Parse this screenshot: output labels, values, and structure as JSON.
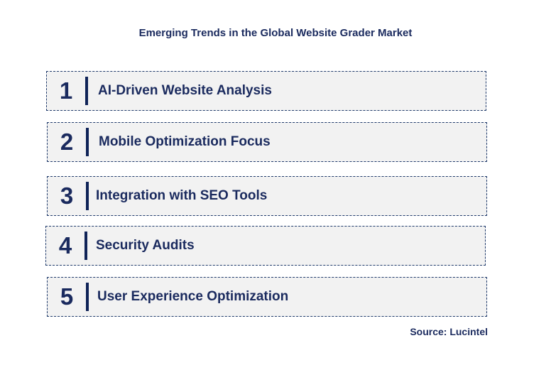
{
  "title": "Emerging Trends in the Global Website Grader Market",
  "trends": [
    {
      "number": "1",
      "label": "AI-Driven Website Analysis"
    },
    {
      "number": "2",
      "label": "Mobile Optimization Focus"
    },
    {
      "number": "3",
      "label": "Integration with SEO Tools"
    },
    {
      "number": "4",
      "label": "Security Audits"
    },
    {
      "number": "5",
      "label": "User Experience Optimization"
    }
  ],
  "source": "Source: Lucintel",
  "colors": {
    "text": "#1a2a5e",
    "box_fill": "#f2f2f2",
    "border": "#1f3a6b",
    "divider": "#0f2357"
  }
}
